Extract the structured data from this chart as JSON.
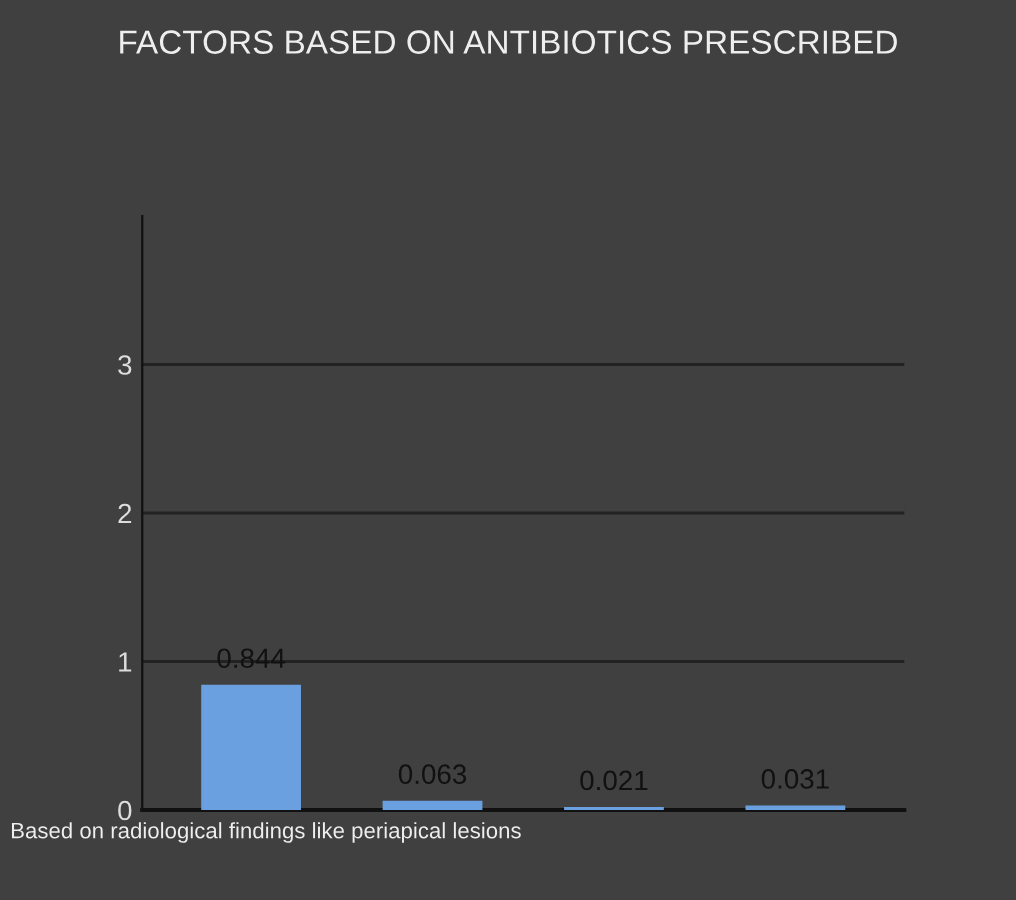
{
  "chart_data": {
    "type": "bar",
    "title": "FACTORS BASED ON ANTIBIOTICS PRESCRIBED",
    "categories": [
      null,
      null,
      null,
      null
    ],
    "values": [
      0.844,
      0.063,
      0.021,
      0.031
    ],
    "color": "#6a9fe0",
    "ylim": [
      0,
      4
    ],
    "yticks": [
      0,
      1,
      2,
      3
    ],
    "grid": "y",
    "data_labels": true,
    "annotations": [
      "Based on radiological findings like periapical lesions"
    ]
  }
}
